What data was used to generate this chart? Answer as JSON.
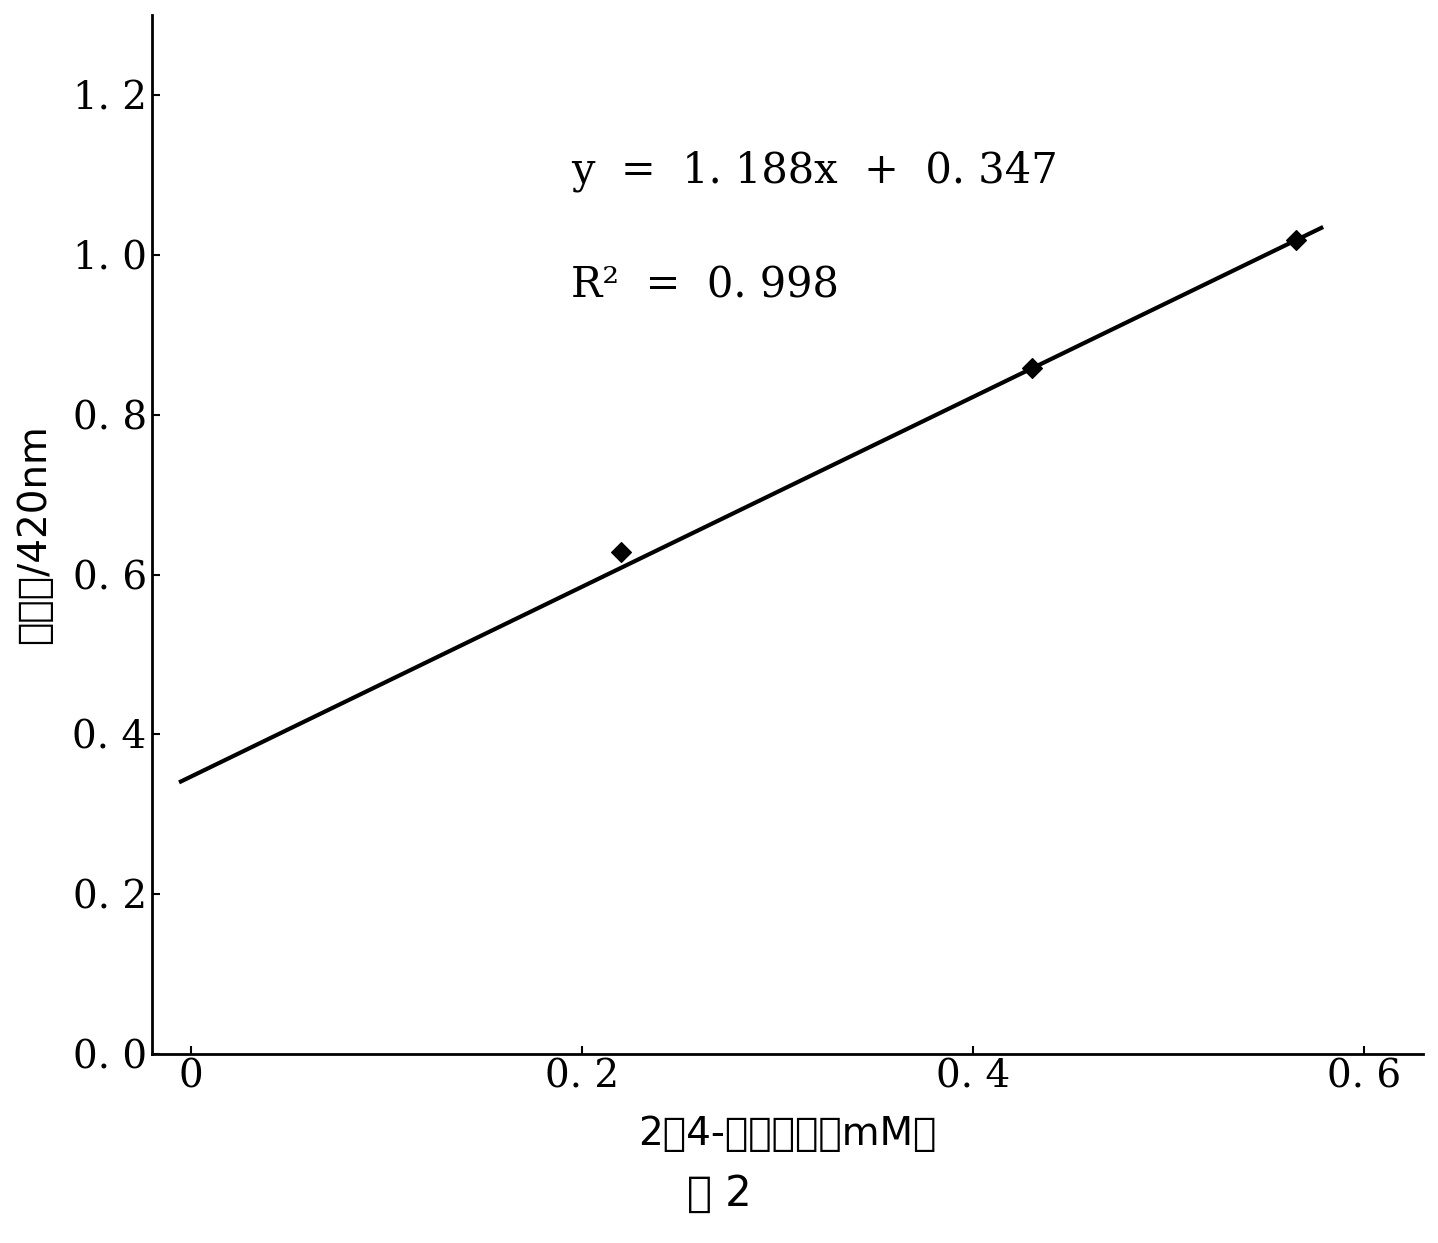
{
  "slope": 1.188,
  "intercept": 0.347,
  "data_points_x": [
    0.22,
    0.43,
    0.565
  ],
  "data_points_y": [
    0.628,
    0.858,
    1.019
  ],
  "line_x_start": -0.005,
  "line_x_end": 0.578,
  "xlim": [
    -0.02,
    0.63
  ],
  "ylim": [
    0.0,
    1.3
  ],
  "xticks": [
    0,
    0.2,
    0.4,
    0.6
  ],
  "xtick_labels": [
    "0",
    "0. 2",
    "0. 4",
    "0. 6"
  ],
  "yticks": [
    0.0,
    0.2,
    0.4,
    0.6,
    0.8,
    1.0,
    1.2
  ],
  "ytick_labels": [
    "0. 0",
    "0. 2",
    "0. 4",
    "0. 6",
    "0. 8",
    "1. 0",
    "1. 2"
  ],
  "equation_line1": "y  =  1. 188x  +  0. 347",
  "equation_line2": "R²  =  0. 998",
  "xlabel": "2，4-奶二烯醇（mM）",
  "ylabel": "吸光度/420nm",
  "caption": "图 2",
  "line_color": "#000000",
  "marker_color": "#000000",
  "background_color": "#ffffff",
  "eq_fontsize": 30,
  "axis_label_fontsize": 28,
  "tick_fontsize": 28,
  "caption_fontsize": 30,
  "line_width": 3.0,
  "marker_size": 100
}
